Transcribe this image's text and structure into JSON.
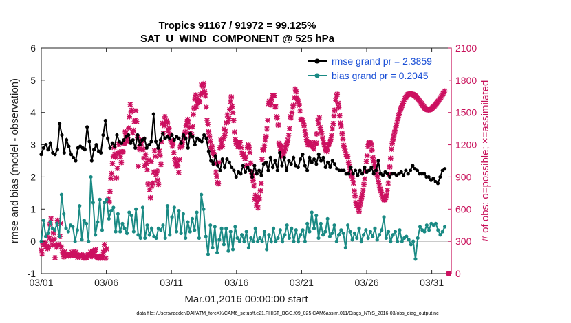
{
  "chart_data": {
    "type": "line",
    "title": "Tropics 91167 / 91972 = 99.125%",
    "subtitle": "SAT_U_WIND_COMPONENT @ 525 hPa",
    "xlabel": "Mar.01,2016 00:00:00 start",
    "ylabel": "rmse and bias (model - observation)",
    "y2label": "# of obs: o=possible; ×=assimilated",
    "footnote": "data file: /Users/raeder/DAI/ATM_forcXX/CAM6_setup/f.e21.FHIST_BGC.f09_025.CAM6assim.011/Diags_NTrS_2016-03/obs_diag_output.nc",
    "xlim": [
      0,
      31.5
    ],
    "ylim": [
      -1,
      6
    ],
    "y2lim": [
      0,
      2100
    ],
    "x_ticks": [
      0,
      5,
      10,
      15,
      20,
      25,
      30
    ],
    "x_tick_labels": [
      "03/01",
      "03/06",
      "03/11",
      "03/16",
      "03/21",
      "03/26",
      "03/31"
    ],
    "y_ticks": [
      "-1",
      "0",
      "1",
      "2",
      "3",
      "4",
      "5",
      "6"
    ],
    "y2_ticks": [
      "0",
      "300",
      "600",
      "900",
      "1200",
      "1500",
      "1800",
      "2100"
    ],
    "legend_position": "top-right",
    "series": [
      {
        "name": "rmse grand pr = 2.3859",
        "color": "#000000",
        "axis": "left",
        "values": [
          2.7,
          2.9,
          3.0,
          2.85,
          3.05,
          2.75,
          2.7,
          2.85,
          3.65,
          3.3,
          2.75,
          3.15,
          2.95,
          2.7,
          2.6,
          2.5,
          2.9,
          2.95,
          2.9,
          2.85,
          3.55,
          3.1,
          2.5,
          2.85,
          3.0,
          2.8,
          2.75,
          3.3,
          3.75,
          3.2,
          2.9,
          3.05,
          2.95,
          3.3,
          3.1,
          3.05,
          3.15,
          3.25,
          3.3,
          3.05,
          3.15,
          2.9,
          3.3,
          3.0,
          3.15,
          3.2,
          2.9,
          3.0,
          3.1,
          3.95,
          3.1,
          2.9,
          3.15,
          3.35,
          3.2,
          3.25,
          3.2,
          3.3,
          3.15,
          3.25,
          3.2,
          3.05,
          3.3,
          3.2,
          2.9,
          3.35,
          3.25,
          3.0,
          3.2,
          3.15,
          3.1,
          3.3,
          3.2,
          2.8,
          2.5,
          2.4,
          2.65,
          2.35,
          2.2,
          2.55,
          2.3,
          2.55,
          2.45,
          2.3,
          2.2,
          2.0,
          2.15,
          2.1,
          2.35,
          2.15,
          2.3,
          2.2,
          2.0,
          2.35,
          2.1,
          2.2,
          2.05,
          2.4,
          2.45,
          2.2,
          2.6,
          2.3,
          2.5,
          2.2,
          2.75,
          2.35,
          2.6,
          2.2,
          2.5,
          2.4,
          2.6,
          2.35,
          2.3,
          2.55,
          2.7,
          2.35,
          2.2,
          2.6,
          2.45,
          2.55,
          2.4,
          2.7,
          2.5,
          2.6,
          2.3,
          2.45,
          2.3,
          2.5,
          2.4,
          2.25,
          2.2,
          2.2,
          2.2,
          2.1,
          2.1,
          2.3,
          2.1,
          2.2,
          2.05,
          2.2,
          2.1,
          2.3,
          2.15,
          2.2,
          2.3,
          2.1,
          2.2,
          2.5,
          2.1,
          2.05,
          2.15,
          2.1,
          2.0,
          2.1,
          2.1,
          2.05,
          2.1,
          2.15,
          2.05,
          2.2,
          2.1,
          2.2,
          2.35,
          2.25,
          2.2,
          2.1,
          2.1,
          2.1,
          2.0,
          2.0,
          1.9,
          1.95,
          1.85,
          1.8,
          2.0,
          2.2,
          2.25
        ]
      },
      {
        "name": "bias grand pr = 0.2045",
        "color": "#1a8a84",
        "axis": "left",
        "values": [
          0.0,
          0.65,
          0.15,
          0.25,
          0.6,
          0.4,
          0.35,
          0.55,
          0.15,
          1.45,
          0.85,
          0.4,
          0.3,
          0.5,
          0.45,
          0.0,
          0.35,
          1.1,
          0.05,
          0.65,
          0.55,
          0.0,
          2.0,
          1.2,
          0.2,
          0.6,
          1.3,
          0.35,
          1.2,
          1.3,
          0.7,
          0.95,
          1.05,
          0.3,
          0.85,
          0.3,
          0.55,
          0.4,
          0.25,
          0.9,
          0.8,
          0.3,
          1.0,
          0.2,
          0.1,
          1.05,
          0.1,
          0.5,
          0.2,
          0.4,
          0.15,
          0.1,
          0.4,
          0.35,
          0.5,
          0.1,
          1.1,
          0.2,
          0.75,
          1.05,
          0.3,
          0.95,
          0.25,
          0.85,
          0.1,
          0.6,
          0.3,
          0.7,
          0.35,
          0.9,
          0.1,
          1.45,
          1.0,
          0.15,
          -0.4,
          0.5,
          -0.2,
          0.45,
          -0.35,
          0.05,
          0.4,
          -0.1,
          0.4,
          -0.3,
          0.3,
          -0.25,
          0.45,
          0.1,
          0.0,
          0.2,
          0.0,
          0.3,
          -0.2,
          0.1,
          0.0,
          0.4,
          0.0,
          0.1,
          0.0,
          0.3,
          -0.25,
          0.2,
          0.0,
          0.4,
          0.0,
          0.1,
          0.35,
          0.0,
          0.2,
          0.5,
          0.1,
          0.4,
          0.0,
          0.35,
          0.0,
          0.2,
          0.35,
          0.0,
          0.55,
          0.3,
          0.9,
          0.4,
          0.8,
          0.1,
          0.55,
          0.2,
          0.3,
          0.7,
          0.15,
          0.25,
          0.5,
          0.0,
          0.2,
          0.35,
          0.25,
          -0.2,
          0.5,
          0.3,
          0.05,
          0.25,
          0.1,
          0.4,
          0.0,
          0.2,
          0.35,
          0.1,
          0.3,
          0.15,
          0.4,
          0.05,
          0.2,
          0.35,
          0.75,
          0.1,
          0.3,
          0.0,
          0.2,
          0.3,
          0.0,
          0.35,
          0.0,
          0.1,
          0.15,
          0.05,
          -0.1,
          0.0,
          -0.55,
          0.1,
          0.45,
          0.35,
          0.3,
          0.5,
          0.35,
          0.55,
          0.5,
          0.55,
          0.35,
          0.2,
          0.3,
          0.45
        ]
      },
      {
        "name": "assimilated",
        "color": "#cc1060",
        "axis": "right",
        "marker": "x",
        "values": [
          217,
          183,
          277,
          266,
          287,
          290,
          250,
          350,
          232,
          253,
          330,
          460,
          510,
          308,
          265,
          378,
          320,
          147,
          267,
          245,
          495,
          273,
          265,
          345,
          465,
          248,
          200,
          193,
          156,
          202,
          172,
          172,
          183,
          169,
          162,
          179,
          168,
          175,
          198,
          170,
          205,
          192,
          166,
          200,
          165,
          150,
          173,
          168,
          162,
          161,
          174,
          167,
          145,
          154,
          141,
          147,
          150,
          167,
          175,
          165,
          175,
          200,
          185,
          158,
          212,
          180,
          212,
          222,
          160,
          154,
          144,
          143,
          147,
          156,
          158,
          169,
          141,
          198,
          270,
          220,
          143,
          230,
          675,
          696,
          665,
          764,
          886,
          931,
          1024,
          1091,
          1174,
          1111,
          1081,
          890,
          980,
          1122,
          1203,
          1134,
          1087,
          1034,
          1135,
          1134,
          1211,
          1216,
          1320,
          1281,
          1229,
          1266,
          1356,
          1461,
          1576,
          1505,
          1521,
          1310,
          1335,
          1414,
          1428,
          1517,
          1416,
          1265,
          998,
          1173,
          1154,
          1237,
          1205,
          1244,
          1157,
          1075,
          1006,
          1107,
          1026,
          965,
          832,
          1058,
          780,
          706,
          1042,
          815,
          844,
          945,
          1144,
          1092,
          924,
          954,
          871,
          830,
          1140,
          1098,
          1016,
          1227,
          1400,
          1307,
          1377,
          1460,
          1414,
          1422,
          1402,
          1326,
          1355,
          1295,
          1239,
          1225,
          1186,
          1206,
          1127,
          1070,
          1023,
          1000,
          1039,
          1003,
          942,
          1060,
          1176,
          1198,
          1182,
          1223,
          1272,
          1292,
          1318,
          1377,
          1414,
          1436,
          1411,
          1363,
          1307,
          1280,
          1296,
          1367,
          1482,
          1542,
          1624,
          1663,
          1553,
          1591,
          1623,
          1603,
          1597,
          1667,
          1757,
          1683,
          1747,
          1770,
          1693,
          1654,
          1550,
          1428,
          1389,
          1321,
          1278,
          1232,
          1163,
          1180,
          1135,
          1128,
          1099,
          1024,
          945,
          903,
          848,
          836,
          1034,
          1173,
          1245,
          1210,
          1183,
          1257,
          1345,
          1285,
          1330,
          1403,
          1477,
          1414,
          1445,
          1528,
          1599,
          1645,
          1558,
          1498,
          1426,
          1318,
          1249,
          1213,
          1219,
          1184,
          1180,
          1223,
          1222,
          1174,
          1124,
          1108,
          1114,
          1089,
          1070,
          1084,
          1007,
          1175,
          1200,
          1175,
          1128,
          1028,
          948,
          909,
          867,
          816,
          690,
          727,
          636,
          671,
          612,
          713,
          694,
          770,
          840,
          1062,
          1157,
          1152,
          1190,
          1244,
          1278,
          1347,
          1427,
          1582,
          1605,
          1593,
          1571,
          1621,
          1659,
          1654,
          1660,
          1553,
          1553,
          1461,
          1448,
          1383,
          1216,
          1195,
          1152,
          1190,
          1139,
          1092,
          1121,
          1142,
          1167,
          1195,
          1219,
          1244,
          1288,
          1350,
          1461,
          1450,
          1500,
          1551,
          1568,
          1639,
          1719,
          1693,
          1640,
          1610,
          1601,
          1568,
          1515,
          1437,
          1436,
          1430,
          1409,
          1380,
          1330,
          1293,
          1250,
          1219,
          1200,
          1200,
          1201,
          1224,
          1209,
          1186,
          1183,
          1160,
          1221,
          1209,
          1216,
          1300,
          1429,
          1396,
          1451,
          1360,
          1325,
          1307,
          1261,
          1225,
          1200,
          1169,
          1151,
          1137,
          1168,
          1199,
          1206,
          1226,
          1252,
          1286,
          1348,
          1397,
          1468,
          1522,
          1614,
          1654,
          1669,
          1586,
          1547,
          1470,
          1401,
          1373,
          1302,
          1253,
          1194,
          1166,
          1141,
          1109,
          1085,
          1091,
          1034,
          999,
          967,
          920,
          910,
          883,
          843,
          770,
          725,
          663,
          632,
          638,
          609,
          580,
          628,
          665,
          703,
          736,
          777,
          830,
          882,
          953,
          1043,
          1097,
          1184,
          1214,
          1220,
          1217,
          1198,
          1151,
          1079,
          1052,
          1020,
          995,
          956,
          917,
          901,
          855,
          817,
          787,
          769,
          738,
          711,
          695,
          686,
          687,
          707,
          731,
          776,
          843,
          924,
          993,
          1073,
          1158,
          1213,
          1253,
          1281,
          1319,
          1348,
          1379,
          1411,
          1441,
          1470,
          1498,
          1523,
          1543,
          1564,
          1584,
          1600,
          1617,
          1632,
          1644,
          1655,
          1665,
          1670,
          1672,
          1673,
          1673,
          1672,
          1670,
          1667,
          1662,
          1657,
          1651,
          1643,
          1634,
          1626,
          1616,
          1606,
          1595,
          1585,
          1574,
          1564,
          1553,
          1544,
          1537,
          1531,
          1527,
          1525,
          1523,
          1525,
          1528,
          1533,
          1538,
          1546,
          1552,
          1560,
          1569,
          1578,
          1587,
          1597,
          1607,
          1618,
          1629,
          1640,
          1652,
          1664,
          1676,
          1688,
          1700
        ]
      },
      {
        "name": "possible",
        "color": "#cc1060",
        "axis": "right",
        "marker": "o",
        "values": [
          0
        ]
      }
    ]
  }
}
